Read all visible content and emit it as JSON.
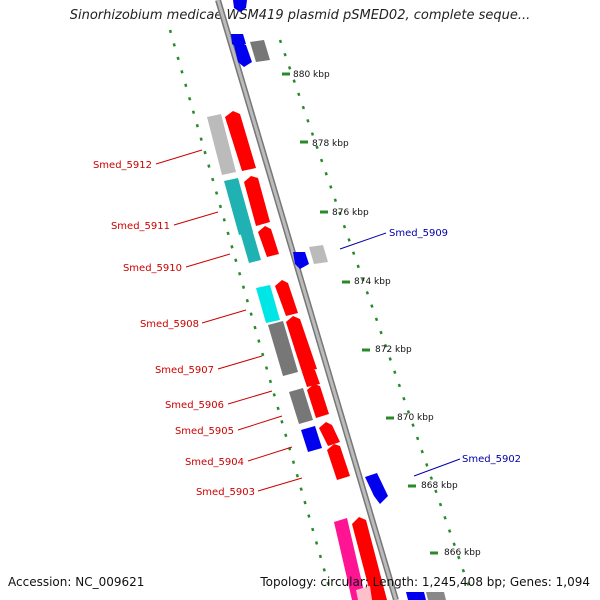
{
  "header": {
    "title": "Sinorhizobium medicae WSM419 plasmid pSMED02, complete seque..."
  },
  "footer": {
    "accession": "Accession: NC_009621",
    "summary": "Topology: circular; Length: 1,245,408 bp; Genes: 1,094"
  },
  "map": {
    "ticks": [
      "880 kbp",
      "878 kbp",
      "876 kbp",
      "874 kbp",
      "872 kbp",
      "870 kbp",
      "868 kbp",
      "866 kbp"
    ],
    "left_labels": [
      "Smed_5912",
      "Smed_5911",
      "Smed_5910",
      "Smed_5908",
      "Smed_5907",
      "Smed_5906",
      "Smed_5905",
      "Smed_5904",
      "Smed_5903"
    ],
    "right_labels": [
      "Smed_5909",
      "Smed_5902"
    ],
    "colors": {
      "reverse_label": "#cc0000",
      "forward_label": "#0000aa",
      "arrow_red": "#ff0000",
      "arrow_blue": "#0000ee",
      "backbone": "#999999",
      "dotted": "#2a8a2a"
    }
  }
}
